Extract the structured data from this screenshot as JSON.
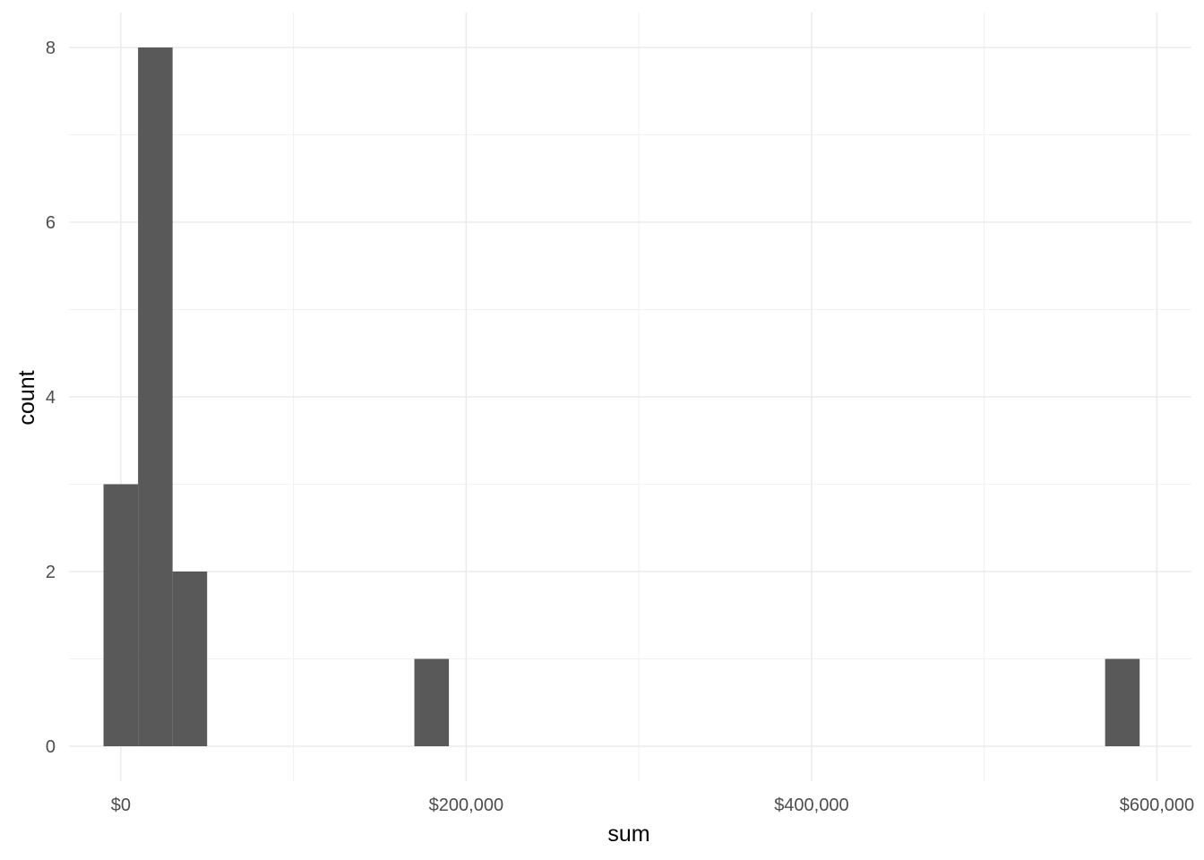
{
  "chart_data": {
    "type": "bar",
    "subtype": "histogram",
    "xlabel": "sum",
    "ylabel": "count",
    "xlim": [
      -30000,
      620000
    ],
    "ylim": [
      -0.4,
      8.4
    ],
    "x_ticks": [
      0,
      200000,
      400000,
      600000
    ],
    "x_tick_labels": [
      "$0",
      "$200,000",
      "$400,000",
      "$600,000"
    ],
    "y_ticks": [
      0,
      2,
      4,
      6,
      8
    ],
    "y_tick_labels": [
      "0",
      "2",
      "4",
      "6",
      "8"
    ],
    "bin_width": 20000,
    "bins": [
      {
        "x_start": -10000,
        "x_end": 10000,
        "count": 3
      },
      {
        "x_start": 10000,
        "x_end": 30000,
        "count": 8
      },
      {
        "x_start": 30000,
        "x_end": 50000,
        "count": 2
      },
      {
        "x_start": 170000,
        "x_end": 190000,
        "count": 1
      },
      {
        "x_start": 570000,
        "x_end": 590000,
        "count": 1
      }
    ],
    "bar_color": "#595959",
    "grid": true,
    "legend": "none",
    "background": "#ffffff"
  }
}
